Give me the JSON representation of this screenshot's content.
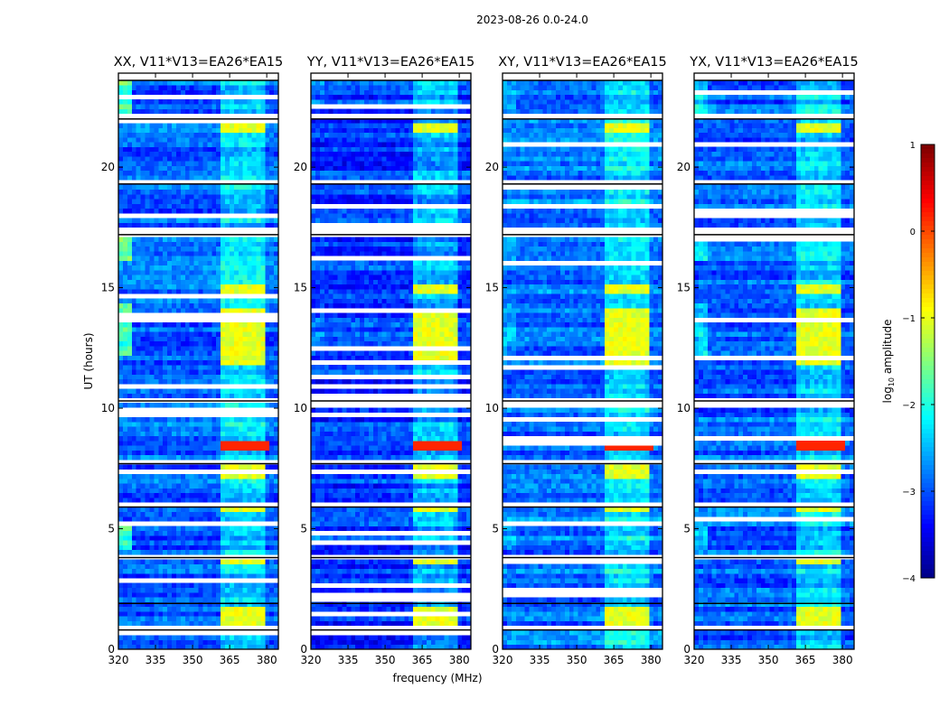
{
  "chart_data": {
    "type": "heatmap",
    "suptitle": "2023-08-26 0.0-24.0",
    "xlabel": "frequency (MHz)",
    "ylabel": "UT (hours)",
    "xlim": [
      320,
      384.7
    ],
    "ylim": [
      0,
      23.9
    ],
    "x_ticks": [
      "320",
      "335",
      "350",
      "365",
      "380"
    ],
    "x_tick_values": [
      320,
      335,
      350,
      365,
      380
    ],
    "y_ticks": [
      "0",
      "5",
      "10",
      "15",
      "20"
    ],
    "y_tick_values": [
      0,
      5,
      10,
      15,
      20
    ],
    "panels": [
      {
        "title": "XX, V11*V13=EA26*EA15",
        "base_level": -2.9,
        "low_freq_excess": 1.2
      },
      {
        "title": "YY, V11*V13=EA26*EA15",
        "base_level": -3.1,
        "low_freq_excess": 0.2
      },
      {
        "title": "XY, V11*V13=EA26*EA15",
        "base_level": -2.8,
        "low_freq_excess": 0.3
      },
      {
        "title": "YX, V11*V13=EA26*EA15",
        "base_level": -2.9,
        "low_freq_excess": 0.6
      }
    ],
    "bright_band_mhz": [
      361,
      380
    ],
    "bright_time_ranges_hours": [
      [
        0.9,
        1.6
      ],
      [
        3.5,
        3.8
      ],
      [
        5.7,
        5.9
      ],
      [
        7.0,
        7.6
      ],
      [
        8.2,
        8.6
      ],
      [
        11.7,
        14.1
      ],
      [
        14.6,
        15.0
      ],
      [
        21.3,
        21.8
      ]
    ],
    "flagged_gaps_hours": [
      [
        0.8,
        0.95
      ],
      [
        1.9,
        2.0
      ],
      [
        3.8,
        3.9
      ],
      [
        5.9,
        6.0
      ],
      [
        7.7,
        7.85
      ],
      [
        10.3,
        10.45
      ],
      [
        17.2,
        17.6
      ],
      [
        19.3,
        19.5
      ],
      [
        22.0,
        22.2
      ],
      [
        23.6,
        23.9
      ]
    ],
    "colorbar": {
      "label": "log10 amplitude",
      "label_main": "log",
      "label_sub": "10",
      "label_rest": " amplitude",
      "range": [
        -4,
        1
      ],
      "ticks": [
        "1",
        "0",
        "−1",
        "−2",
        "−3",
        "−4"
      ],
      "tick_values": [
        1,
        0,
        -1,
        -2,
        -3,
        -4
      ],
      "colormap": "jet"
    }
  }
}
